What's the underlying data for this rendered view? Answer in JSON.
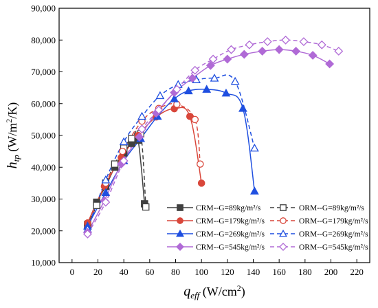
{
  "chart_data": {
    "type": "line",
    "xlabel": {
      "main": "q",
      "sub": "eff",
      "unit": " (W/cm",
      "sup": "2",
      "close": ")"
    },
    "ylabel": {
      "main": "h",
      "sub": "tp",
      "unit": " (W/m",
      "sup": "2",
      "close": "/K)"
    },
    "xlim": [
      -10,
      230
    ],
    "ylim": [
      10000,
      90000
    ],
    "x_ticks": [
      0,
      20,
      40,
      60,
      80,
      100,
      120,
      140,
      160,
      180,
      200,
      220
    ],
    "y_ticks": [
      10000,
      20000,
      30000,
      40000,
      50000,
      60000,
      70000,
      80000,
      90000
    ],
    "y_tick_labels": [
      "10,000",
      "20,000",
      "30,000",
      "40,000",
      "50,000",
      "60,000",
      "70,000",
      "80,000",
      "90,000"
    ],
    "grid": false,
    "legend_position": "bottom-right",
    "series": [
      {
        "name": "CRM--G=89kg/m²/s",
        "color": "#404040",
        "marker": "square",
        "filled": true,
        "dashed": false,
        "x": [
          12,
          19,
          26,
          33,
          40,
          46,
          51,
          56
        ],
        "y": [
          22000,
          29000,
          34000,
          40000,
          44500,
          47500,
          48500,
          28500
        ]
      },
      {
        "name": "ORM--G=89kg/m²/s",
        "color": "#404040",
        "marker": "square",
        "filled": false,
        "dashed": true,
        "x": [
          12,
          19,
          26,
          33,
          40,
          46,
          53,
          57
        ],
        "y": [
          21500,
          28000,
          35000,
          41000,
          46000,
          49000,
          50500,
          27500
        ]
      },
      {
        "name": "CRM--G=179kg/m²/s",
        "color": "#d9473b",
        "marker": "circle",
        "filled": true,
        "dashed": false,
        "x": [
          12,
          25,
          38,
          51,
          65,
          79,
          91,
          100
        ],
        "y": [
          22500,
          34000,
          43000,
          50000,
          55800,
          58400,
          56000,
          35000
        ]
      },
      {
        "name": "ORM--G=179kg/m²/s",
        "color": "#d9473b",
        "marker": "circle",
        "filled": false,
        "dashed": true,
        "x": [
          12,
          26,
          39,
          54,
          67,
          81,
          95,
          99
        ],
        "y": [
          21000,
          35000,
          45000,
          54500,
          58500,
          59800,
          55000,
          41000
        ]
      },
      {
        "name": "CRM--G=269kg/m²/s",
        "color": "#1f4fe0",
        "marker": "triangle",
        "filled": true,
        "dashed": false,
        "x": [
          12,
          26,
          40,
          53,
          66,
          79,
          90,
          104,
          119,
          132,
          141
        ],
        "y": [
          21500,
          32000,
          42000,
          49000,
          56000,
          61500,
          64000,
          64500,
          63300,
          58500,
          32500
        ]
      },
      {
        "name": "ORM--G=269kg/m²/s",
        "color": "#1f4fe0",
        "marker": "triangle",
        "filled": false,
        "dashed": true,
        "x": [
          12,
          26,
          40,
          54,
          68,
          82,
          96,
          110,
          126,
          141
        ],
        "y": [
          20500,
          36000,
          48000,
          56000,
          62500,
          66000,
          67500,
          68000,
          67000,
          46000
        ]
      },
      {
        "name": "CRM--G=545kg/m²/s",
        "color": "#b06ad6",
        "marker": "diamond",
        "filled": true,
        "dashed": false,
        "x": [
          12,
          25,
          38,
          52,
          65,
          79,
          93,
          107,
          120,
          133,
          147,
          160,
          173,
          186,
          199
        ],
        "y": [
          19500,
          29500,
          41000,
          49500,
          57000,
          63500,
          68000,
          72000,
          74000,
          75500,
          76500,
          77000,
          76500,
          75200,
          72500
        ]
      },
      {
        "name": "ORM--G=545kg/m²/s",
        "color": "#b06ad6",
        "marker": "diamond",
        "filled": false,
        "dashed": true,
        "x": [
          12,
          26,
          40,
          54,
          67,
          81,
          95,
          109,
          123,
          137,
          151,
          165,
          179,
          193,
          206
        ],
        "y": [
          19000,
          29000,
          42000,
          52000,
          58000,
          64500,
          70500,
          74000,
          77000,
          78500,
          79500,
          80000,
          79500,
          78500,
          76500
        ]
      }
    ]
  }
}
